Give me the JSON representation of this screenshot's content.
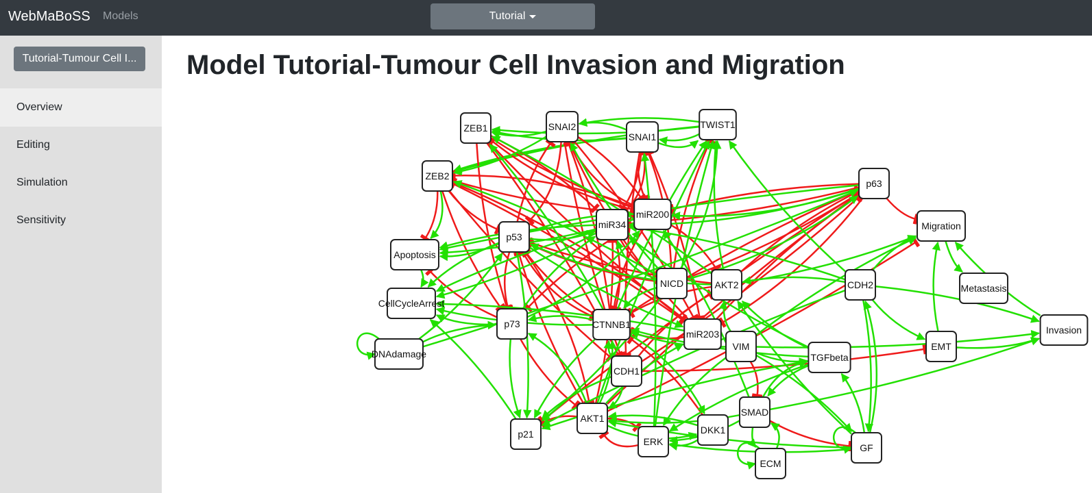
{
  "navbar": {
    "brand": "WebMaBoSS",
    "models_link": "Models",
    "dropdown_label": "Tutorial"
  },
  "sidebar": {
    "model_button": "Tutorial-Tumour Cell I...",
    "items": [
      {
        "label": "Overview",
        "active": true
      },
      {
        "label": "Editing",
        "active": false
      },
      {
        "label": "Simulation",
        "active": false
      },
      {
        "label": "Sensitivity",
        "active": false
      }
    ]
  },
  "main": {
    "title": "Model Tutorial-Tumour Cell Invasion and Migration"
  },
  "colors": {
    "activation": "#22e000",
    "inhibition": "#ef1a1a"
  },
  "graph": {
    "nodes": [
      "ZEB1",
      "SNAI2",
      "SNAI1",
      "TWIST1",
      "ZEB2",
      "p63",
      "miR200",
      "miR34",
      "p53",
      "Migration",
      "Apoptosis",
      "NICD",
      "AKT2",
      "CDH2",
      "Metastasis",
      "CellCycleArrest",
      "p73",
      "CTNNB1",
      "miR203",
      "VIM",
      "Invasion",
      "EMT",
      "TGFbeta",
      "DNAdamage",
      "CDH1",
      "SMAD",
      "AKT1",
      "DKK1",
      "p21",
      "ERK",
      "GF",
      "ECM"
    ],
    "edges": [
      {
        "from": "TWIST1",
        "to": "ZEB1",
        "type": "activation"
      },
      {
        "from": "TWIST1",
        "to": "SNAI2",
        "type": "activation"
      },
      {
        "from": "TWIST1",
        "to": "SNAI1",
        "type": "activation"
      },
      {
        "from": "TWIST1",
        "to": "ZEB2",
        "type": "activation"
      },
      {
        "from": "SNAI1",
        "to": "ZEB1",
        "type": "activation"
      },
      {
        "from": "SNAI1",
        "to": "ZEB2",
        "type": "activation"
      },
      {
        "from": "SNAI2",
        "to": "ZEB1",
        "type": "activation"
      },
      {
        "from": "SNAI1",
        "to": "TWIST1",
        "type": "activation"
      },
      {
        "from": "ZEB1",
        "to": "miR200",
        "type": "inhibition"
      },
      {
        "from": "ZEB1",
        "to": "miR34",
        "type": "inhibition"
      },
      {
        "from": "ZEB1",
        "to": "p73",
        "type": "inhibition"
      },
      {
        "from": "ZEB1",
        "to": "CDH1",
        "type": "inhibition"
      },
      {
        "from": "ZEB1",
        "to": "miR203",
        "type": "inhibition"
      },
      {
        "from": "SNAI2",
        "to": "miR200",
        "type": "inhibition"
      },
      {
        "from": "SNAI2",
        "to": "CDH1",
        "type": "inhibition"
      },
      {
        "from": "SNAI2",
        "to": "miR203",
        "type": "inhibition"
      },
      {
        "from": "SNAI1",
        "to": "miR200",
        "type": "inhibition"
      },
      {
        "from": "SNAI1",
        "to": "miR34",
        "type": "inhibition"
      },
      {
        "from": "SNAI1",
        "to": "CDH1",
        "type": "inhibition"
      },
      {
        "from": "SNAI1",
        "to": "miR203",
        "type": "inhibition"
      },
      {
        "from": "ZEB2",
        "to": "miR200",
        "type": "inhibition"
      },
      {
        "from": "ZEB2",
        "to": "miR203",
        "type": "inhibition"
      },
      {
        "from": "ZEB2",
        "to": "CDH1",
        "type": "inhibition"
      },
      {
        "from": "ZEB2",
        "to": "Apoptosis",
        "type": "inhibition"
      },
      {
        "from": "ZEB2",
        "to": "p73",
        "type": "inhibition"
      },
      {
        "from": "miR200",
        "to": "ZEB1",
        "type": "inhibition"
      },
      {
        "from": "miR200",
        "to": "ZEB2",
        "type": "inhibition"
      },
      {
        "from": "miR200",
        "to": "SNAI2",
        "type": "inhibition"
      },
      {
        "from": "miR200",
        "to": "CTNNB1",
        "type": "inhibition"
      },
      {
        "from": "miR200",
        "to": "AKT2",
        "type": "inhibition"
      },
      {
        "from": "miR34",
        "to": "SNAI1",
        "type": "inhibition"
      },
      {
        "from": "miR34",
        "to": "CTNNB1",
        "type": "inhibition"
      },
      {
        "from": "miR34",
        "to": "NICD",
        "type": "inhibition"
      },
      {
        "from": "miR203",
        "to": "SNAI2",
        "type": "inhibition"
      },
      {
        "from": "miR203",
        "to": "ZEB2",
        "type": "inhibition"
      },
      {
        "from": "miR203",
        "to": "p63",
        "type": "inhibition"
      },
      {
        "from": "p63",
        "to": "miR200",
        "type": "inhibition"
      },
      {
        "from": "p63",
        "to": "miR34",
        "type": "inhibition"
      },
      {
        "from": "p63",
        "to": "Migration",
        "type": "inhibition"
      },
      {
        "from": "p63",
        "to": "miR203",
        "type": "inhibition"
      },
      {
        "from": "p63",
        "to": "p21",
        "type": "inhibition"
      },
      {
        "from": "AKT1",
        "to": "p63",
        "type": "inhibition"
      },
      {
        "from": "AKT1",
        "to": "miR34",
        "type": "inhibition"
      },
      {
        "from": "AKT1",
        "to": "p53",
        "type": "inhibition"
      },
      {
        "from": "AKT1",
        "to": "p21",
        "type": "inhibition"
      },
      {
        "from": "AKT1",
        "to": "ERK",
        "type": "inhibition"
      },
      {
        "from": "AKT1",
        "to": "Migration",
        "type": "inhibition"
      },
      {
        "from": "AKT2",
        "to": "p53",
        "type": "inhibition"
      },
      {
        "from": "AKT2",
        "to": "CTNNB1",
        "type": "inhibition"
      },
      {
        "from": "AKT2",
        "to": "p63",
        "type": "inhibition"
      },
      {
        "from": "CDH1",
        "to": "p63",
        "type": "inhibition"
      },
      {
        "from": "CDH1",
        "to": "AKT2",
        "type": "inhibition"
      },
      {
        "from": "CDH1",
        "to": "EMT",
        "type": "inhibition"
      },
      {
        "from": "CTNNB1",
        "to": "p53",
        "type": "inhibition"
      },
      {
        "from": "CTNNB1",
        "to": "SNAI2",
        "type": "inhibition"
      },
      {
        "from": "CTNNB1",
        "to": "p63",
        "type": "inhibition"
      },
      {
        "from": "p73",
        "to": "AKT1",
        "type": "inhibition"
      },
      {
        "from": "p73",
        "to": "Apoptosis",
        "type": "inhibition"
      },
      {
        "from": "p53",
        "to": "CTNNB1",
        "type": "inhibition"
      },
      {
        "from": "p53",
        "to": "AKT1",
        "type": "inhibition"
      },
      {
        "from": "p53",
        "to": "p73",
        "type": "inhibition"
      },
      {
        "from": "p53",
        "to": "SNAI2",
        "type": "inhibition"
      },
      {
        "from": "NICD",
        "to": "p63",
        "type": "inhibition"
      },
      {
        "from": "NICD",
        "to": "p53",
        "type": "inhibition"
      },
      {
        "from": "NICD",
        "to": "SNAI1",
        "type": "inhibition"
      },
      {
        "from": "NICD",
        "to": "TWIST1",
        "type": "inhibition"
      },
      {
        "from": "SMAD",
        "to": "GF",
        "type": "inhibition"
      },
      {
        "from": "VIM",
        "to": "SMAD",
        "type": "inhibition"
      },
      {
        "from": "DKK1",
        "to": "CTNNB1",
        "type": "inhibition"
      },
      {
        "from": "SNAI2",
        "to": "p53",
        "type": "inhibition"
      },
      {
        "from": "ZEB2",
        "to": "p53",
        "type": "inhibition"
      },
      {
        "from": "ERK",
        "to": "AKT1",
        "type": "inhibition"
      },
      {
        "from": "miR200",
        "to": "p73",
        "type": "inhibition"
      },
      {
        "from": "miR203",
        "to": "CTNNB1",
        "type": "inhibition"
      },
      {
        "from": "p53",
        "to": "miR200",
        "type": "activation"
      },
      {
        "from": "p53",
        "to": "miR34",
        "type": "activation"
      },
      {
        "from": "p53",
        "to": "Apoptosis",
        "type": "activation"
      },
      {
        "from": "p53",
        "to": "CellCycleArrest",
        "type": "activation"
      },
      {
        "from": "p53",
        "to": "p21",
        "type": "activation"
      },
      {
        "from": "p53",
        "to": "miR203",
        "type": "activation"
      },
      {
        "from": "p63",
        "to": "miR34",
        "type": "activation"
      },
      {
        "from": "p63",
        "to": "Apoptosis",
        "type": "activation"
      },
      {
        "from": "p63",
        "to": "miR200",
        "type": "activation"
      },
      {
        "from": "p73",
        "to": "p21",
        "type": "activation"
      },
      {
        "from": "p73",
        "to": "miR34",
        "type": "activation"
      },
      {
        "from": "p73",
        "to": "miR200",
        "type": "activation"
      },
      {
        "from": "p73",
        "to": "CellCycleArrest",
        "type": "activation"
      },
      {
        "from": "DNAdamage",
        "to": "p53",
        "type": "activation"
      },
      {
        "from": "DNAdamage",
        "to": "p73",
        "type": "activation"
      },
      {
        "from": "DNAdamage",
        "to": "p63",
        "type": "activation"
      },
      {
        "from": "DNAdamage",
        "to": "DNAdamage",
        "type": "activation"
      },
      {
        "from": "miR34",
        "to": "Apoptosis",
        "type": "activation"
      },
      {
        "from": "miR34",
        "to": "CellCycleArrest",
        "type": "activation"
      },
      {
        "from": "p21",
        "to": "CellCycleArrest",
        "type": "activation"
      },
      {
        "from": "Apoptosis",
        "to": "CellCycleArrest",
        "type": "activation"
      },
      {
        "from": "NICD",
        "to": "ZEB2",
        "type": "activation"
      },
      {
        "from": "NICD",
        "to": "SNAI2",
        "type": "activation"
      },
      {
        "from": "NICD",
        "to": "TWIST1",
        "type": "activation"
      },
      {
        "from": "NICD",
        "to": "p21",
        "type": "activation"
      },
      {
        "from": "NICD",
        "to": "CTNNB1",
        "type": "activation"
      },
      {
        "from": "NICD",
        "to": "miR34",
        "type": "activation"
      },
      {
        "from": "NICD",
        "to": "p63",
        "type": "activation"
      },
      {
        "from": "AKT2",
        "to": "TWIST1",
        "type": "activation"
      },
      {
        "from": "AKT2",
        "to": "Migration",
        "type": "activation"
      },
      {
        "from": "AKT2",
        "to": "p53",
        "type": "activation"
      },
      {
        "from": "AKT2",
        "to": "ZEB1",
        "type": "activation"
      },
      {
        "from": "CTNNB1",
        "to": "TWIST1",
        "type": "activation"
      },
      {
        "from": "CTNNB1",
        "to": "ZEB1",
        "type": "activation"
      },
      {
        "from": "CTNNB1",
        "to": "DKK1",
        "type": "activation"
      },
      {
        "from": "CTNNB1",
        "to": "p73",
        "type": "activation"
      },
      {
        "from": "CTNNB1",
        "to": "CellCycleArrest",
        "type": "activation"
      },
      {
        "from": "CTNNB1",
        "to": "p21",
        "type": "activation"
      },
      {
        "from": "CDH2",
        "to": "TWIST1",
        "type": "activation"
      },
      {
        "from": "CDH2",
        "to": "AKT2",
        "type": "activation"
      },
      {
        "from": "CDH2",
        "to": "Migration",
        "type": "activation"
      },
      {
        "from": "CDH2",
        "to": "EMT",
        "type": "activation"
      },
      {
        "from": "CDH2",
        "to": "Invasion",
        "type": "activation"
      },
      {
        "from": "CDH2",
        "to": "miR34",
        "type": "activation"
      },
      {
        "from": "CDH2",
        "to": "GF",
        "type": "activation"
      },
      {
        "from": "CDH2",
        "to": "p21",
        "type": "activation"
      },
      {
        "from": "TGFbeta",
        "to": "AKT2",
        "type": "activation"
      },
      {
        "from": "TGFbeta",
        "to": "SMAD",
        "type": "activation"
      },
      {
        "from": "TGFbeta",
        "to": "CTNNB1",
        "type": "activation"
      },
      {
        "from": "TGFbeta",
        "to": "ERK",
        "type": "activation"
      },
      {
        "from": "TGFbeta",
        "to": "miR34",
        "type": "activation"
      },
      {
        "from": "TGFbeta",
        "to": "p21",
        "type": "activation"
      },
      {
        "from": "VIM",
        "to": "Migration",
        "type": "activation"
      },
      {
        "from": "VIM",
        "to": "Invasion",
        "type": "activation"
      },
      {
        "from": "VIM",
        "to": "AKT2",
        "type": "activation"
      },
      {
        "from": "VIM",
        "to": "ERK",
        "type": "activation"
      },
      {
        "from": "VIM",
        "to": "CTNNB1",
        "type": "activation"
      },
      {
        "from": "VIM",
        "to": "TGFbeta",
        "type": "activation"
      },
      {
        "from": "VIM",
        "to": "GF",
        "type": "activation"
      },
      {
        "from": "Migration",
        "to": "Metastasis",
        "type": "activation"
      },
      {
        "from": "EMT",
        "to": "Migration",
        "type": "activation"
      },
      {
        "from": "EMT",
        "to": "Invasion",
        "type": "activation"
      },
      {
        "from": "Invasion",
        "to": "Migration",
        "type": "activation"
      },
      {
        "from": "SMAD",
        "to": "Invasion",
        "type": "activation"
      },
      {
        "from": "SMAD",
        "to": "ERK",
        "type": "activation"
      },
      {
        "from": "SMAD",
        "to": "ECM",
        "type": "activation"
      },
      {
        "from": "SMAD",
        "to": "TGFbeta",
        "type": "activation"
      },
      {
        "from": "SMAD",
        "to": "miR200",
        "type": "activation"
      },
      {
        "from": "SMAD",
        "to": "AKT1",
        "type": "activation"
      },
      {
        "from": "ECM",
        "to": "SMAD",
        "type": "activation"
      },
      {
        "from": "ECM",
        "to": "ECM",
        "type": "activation"
      },
      {
        "from": "GF",
        "to": "GF",
        "type": "activation"
      },
      {
        "from": "GF",
        "to": "AKT1",
        "type": "activation"
      },
      {
        "from": "GF",
        "to": "TGFbeta",
        "type": "activation"
      },
      {
        "from": "GF",
        "to": "AKT2",
        "type": "activation"
      },
      {
        "from": "GF",
        "to": "CDH2",
        "type": "activation"
      },
      {
        "from": "GF",
        "to": "ERK",
        "type": "activation"
      },
      {
        "from": "DKK1",
        "to": "AKT1",
        "type": "activation"
      },
      {
        "from": "DKK1",
        "to": "ERK",
        "type": "activation"
      },
      {
        "from": "AKT1",
        "to": "CTNNB1",
        "type": "activation"
      },
      {
        "from": "AKT1",
        "to": "TWIST1",
        "type": "activation"
      },
      {
        "from": "AKT1",
        "to": "p73",
        "type": "activation"
      },
      {
        "from": "AKT1",
        "to": "miR203",
        "type": "activation"
      },
      {
        "from": "AKT1",
        "to": "DKK1",
        "type": "activation"
      },
      {
        "from": "CDH1",
        "to": "CTNNB1",
        "type": "activation"
      },
      {
        "from": "CDH1",
        "to": "p21",
        "type": "activation"
      },
      {
        "from": "CDH1",
        "to": "AKT1",
        "type": "activation"
      },
      {
        "from": "ERK",
        "to": "SNAI1",
        "type": "activation"
      },
      {
        "from": "ERK",
        "to": "TWIST1",
        "type": "activation"
      },
      {
        "from": "miR203",
        "to": "CellCycleArrest",
        "type": "activation"
      },
      {
        "from": "miR200",
        "to": "Apoptosis",
        "type": "activation"
      },
      {
        "from": "miR200",
        "to": "CellCycleArrest",
        "type": "activation"
      },
      {
        "from": "SNAI2",
        "to": "ZEB2",
        "type": "activation"
      },
      {
        "from": "SNAI1",
        "to": "SNAI2",
        "type": "activation"
      },
      {
        "from": "ZEB2",
        "to": "Apoptosis",
        "type": "activation"
      }
    ]
  }
}
